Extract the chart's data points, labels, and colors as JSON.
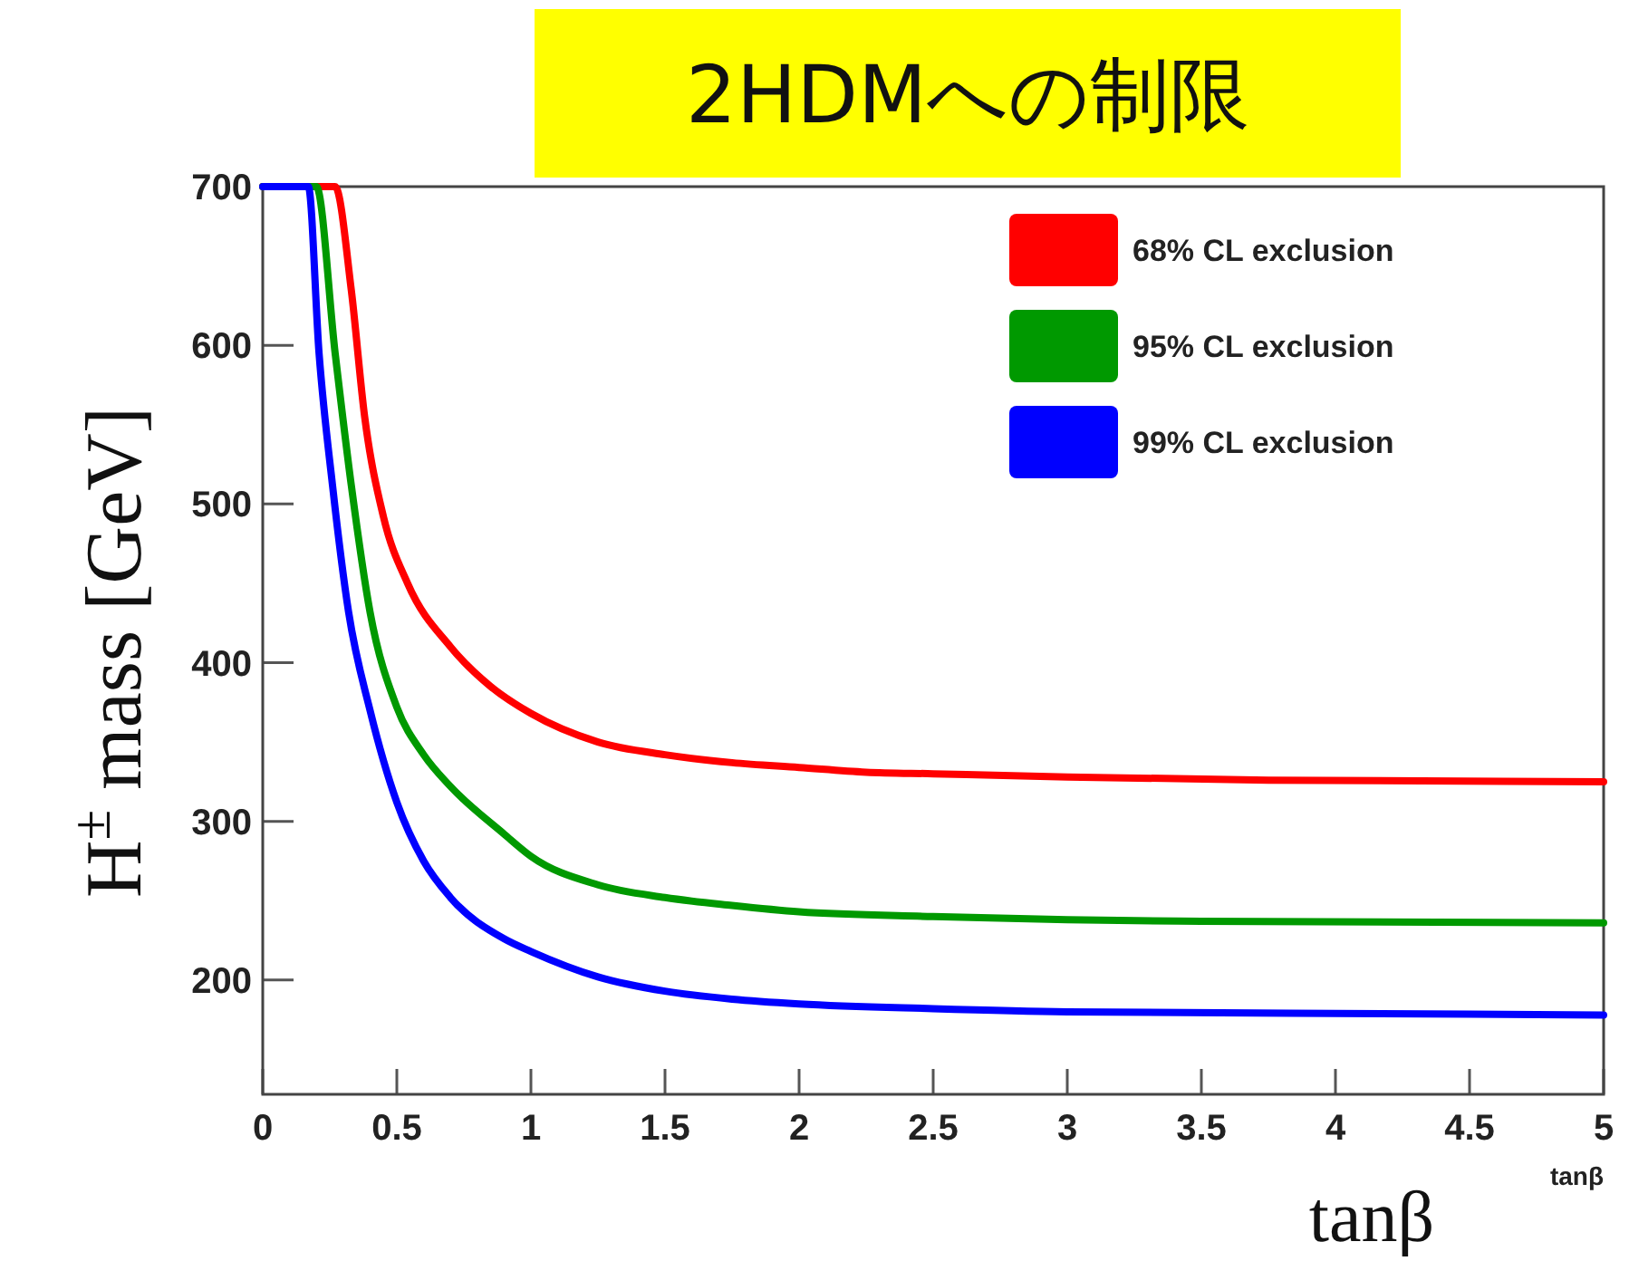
{
  "chart_data": {
    "type": "line",
    "title": "2HDMへの制限",
    "xlabel": "tanβ",
    "ylabel": "H$^{±}$ mass [GeV]",
    "annotations": [
      "tanβ"
    ],
    "xlim": [
      0,
      5
    ],
    "xticks": [
      0,
      0.5,
      1,
      1.5,
      2,
      2.5,
      3,
      3.5,
      4,
      4.5,
      5
    ],
    "ylim": [
      128,
      700
    ],
    "yticks": [
      200,
      300,
      400,
      500,
      600,
      700
    ],
    "legend": "top right",
    "series": [
      {
        "name": "68% CL exclusion",
        "color": "#ff0000",
        "x": [
          0,
          0.27,
          0.33,
          0.38,
          0.45,
          0.54,
          0.7,
          0.85,
          1,
          1.25,
          1.5,
          1.75,
          2,
          2.25,
          2.5,
          3,
          3.75,
          5
        ],
        "values": [
          700,
          700,
          635,
          555,
          492,
          450,
          410,
          385,
          368,
          350,
          342,
          337,
          334,
          331,
          330,
          328,
          326,
          325
        ]
      },
      {
        "name": "95% CL exclusion",
        "color": "#009900",
        "x": [
          0,
          0.2,
          0.27,
          0.33,
          0.4,
          0.5,
          0.6,
          0.7,
          0.9,
          1,
          1.25,
          1.5,
          1.75,
          2,
          2.5,
          3,
          3.5,
          5
        ],
        "values": [
          700,
          700,
          595,
          512,
          432,
          372,
          342,
          322,
          292,
          278,
          260,
          252,
          247,
          243,
          240,
          238,
          237,
          236
        ]
      },
      {
        "name": "99% CL exclusion",
        "color": "#0000ff",
        "x": [
          0,
          0.17,
          0.21,
          0.26,
          0.32,
          0.4,
          0.5,
          0.6,
          0.7,
          0.9,
          1,
          1.25,
          1.5,
          1.75,
          2,
          2.5,
          3,
          4,
          5
        ],
        "values": [
          700,
          700,
          595,
          512,
          432,
          370,
          312,
          275,
          252,
          226,
          218,
          202,
          193,
          188,
          185,
          182,
          180,
          179,
          178
        ]
      }
    ]
  }
}
